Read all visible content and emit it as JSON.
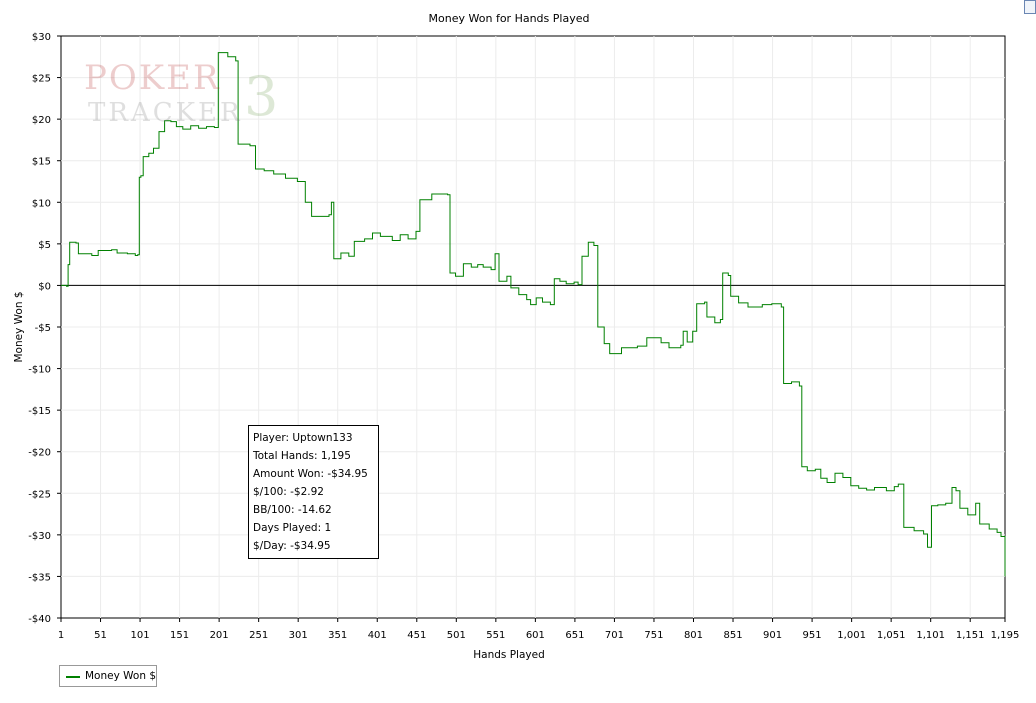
{
  "chart_data": {
    "type": "line",
    "title": "Money Won for Hands Played",
    "xlabel": "Hands Played",
    "ylabel": "Money Won $",
    "xlim": [
      1,
      1195
    ],
    "ylim": [
      -40,
      30
    ],
    "x_ticks": [
      1,
      51,
      101,
      151,
      201,
      251,
      301,
      351,
      401,
      451,
      501,
      551,
      601,
      651,
      701,
      751,
      801,
      851,
      901,
      951,
      1001,
      1051,
      1101,
      1151,
      1195
    ],
    "x_tick_labels": [
      "1",
      "51",
      "101",
      "151",
      "201",
      "251",
      "301",
      "351",
      "401",
      "451",
      "501",
      "551",
      "601",
      "651",
      "701",
      "751",
      "801",
      "851",
      "901",
      "951",
      "1,001",
      "1,051",
      "1,101",
      "1,151",
      "1,195"
    ],
    "y_ticks": [
      30,
      25,
      20,
      15,
      10,
      5,
      0,
      -5,
      -10,
      -15,
      -20,
      -25,
      -30,
      -35,
      -40
    ],
    "y_tick_labels": [
      "$30",
      "$25",
      "$20",
      "$15",
      "$10",
      "$5",
      "$0",
      "-$5",
      "-$10",
      "-$15",
      "-$20",
      "-$25",
      "-$30",
      "-$35",
      "-$40"
    ],
    "grid": true,
    "legend_position": "bottom-left",
    "series": [
      {
        "name": "Money Won $",
        "color": "#008000",
        "points": [
          [
            1,
            0
          ],
          [
            8,
            -0.1
          ],
          [
            10,
            2.5
          ],
          [
            12,
            5.2
          ],
          [
            20,
            5.1
          ],
          [
            23,
            3.8
          ],
          [
            40,
            3.6
          ],
          [
            48,
            4.2
          ],
          [
            65,
            4.3
          ],
          [
            72,
            3.9
          ],
          [
            85,
            3.8
          ],
          [
            95,
            3.6
          ],
          [
            98,
            3.7
          ],
          [
            100,
            13
          ],
          [
            102,
            13.2
          ],
          [
            105,
            15.5
          ],
          [
            112,
            15.9
          ],
          [
            118,
            16.5
          ],
          [
            125,
            18.5
          ],
          [
            132,
            19.8
          ],
          [
            140,
            19.7
          ],
          [
            147,
            19.1
          ],
          [
            155,
            18.8
          ],
          [
            165,
            19.2
          ],
          [
            175,
            18.9
          ],
          [
            185,
            19.1
          ],
          [
            195,
            19
          ],
          [
            200,
            28
          ],
          [
            212,
            27.5
          ],
          [
            222,
            27
          ],
          [
            225,
            17
          ],
          [
            240,
            16.8
          ],
          [
            247,
            14
          ],
          [
            258,
            13.8
          ],
          [
            270,
            13.4
          ],
          [
            285,
            12.9
          ],
          [
            300,
            12.5
          ],
          [
            310,
            10
          ],
          [
            318,
            8.3
          ],
          [
            340,
            8.5
          ],
          [
            343,
            10
          ],
          [
            346,
            3.2
          ],
          [
            355,
            3.9
          ],
          [
            365,
            3.5
          ],
          [
            372,
            5.3
          ],
          [
            385,
            5.6
          ],
          [
            395,
            6.3
          ],
          [
            405,
            5.9
          ],
          [
            420,
            5.4
          ],
          [
            430,
            6.1
          ],
          [
            440,
            5.6
          ],
          [
            450,
            6.5
          ],
          [
            455,
            10.3
          ],
          [
            470,
            11
          ],
          [
            490,
            10.9
          ],
          [
            493,
            1.5
          ],
          [
            500,
            1.1
          ],
          [
            510,
            2.6
          ],
          [
            520,
            2.2
          ],
          [
            528,
            2.5
          ],
          [
            535,
            2.2
          ],
          [
            545,
            1.9
          ],
          [
            550,
            3.8
          ],
          [
            555,
            0.5
          ],
          [
            565,
            1.1
          ],
          [
            570,
            -0.3
          ],
          [
            580,
            -1.1
          ],
          [
            590,
            -1.7
          ],
          [
            595,
            -2.3
          ],
          [
            602,
            -1.5
          ],
          [
            610,
            -2
          ],
          [
            620,
            -2.3
          ],
          [
            625,
            0.8
          ],
          [
            632,
            0.5
          ],
          [
            640,
            0.2
          ],
          [
            650,
            0.4
          ],
          [
            655,
            0.1
          ],
          [
            660,
            3.5
          ],
          [
            668,
            5.2
          ],
          [
            675,
            4.8
          ],
          [
            680,
            -5
          ],
          [
            688,
            -7
          ],
          [
            695,
            -8.2
          ],
          [
            710,
            -7.5
          ],
          [
            730,
            -7.3
          ],
          [
            742,
            -6.3
          ],
          [
            760,
            -6.9
          ],
          [
            770,
            -7.5
          ],
          [
            785,
            -7.2
          ],
          [
            788,
            -5.5
          ],
          [
            793,
            -6.8
          ],
          [
            800,
            -5.5
          ],
          [
            805,
            -2.2
          ],
          [
            815,
            -2
          ],
          [
            818,
            -3.8
          ],
          [
            828,
            -4.5
          ],
          [
            835,
            -4.1
          ],
          [
            838,
            1.5
          ],
          [
            845,
            1.2
          ],
          [
            848,
            -1.3
          ],
          [
            858,
            -2.1
          ],
          [
            870,
            -2.6
          ],
          [
            888,
            -2.3
          ],
          [
            900,
            -2.2
          ],
          [
            912,
            -2.6
          ],
          [
            915,
            -11.8
          ],
          [
            925,
            -11.6
          ],
          [
            935,
            -12.1
          ],
          [
            938,
            -21.8
          ],
          [
            945,
            -22.3
          ],
          [
            955,
            -22.1
          ],
          [
            962,
            -23.2
          ],
          [
            970,
            -23.7
          ],
          [
            980,
            -22.6
          ],
          [
            990,
            -23.1
          ],
          [
            1000,
            -24.1
          ],
          [
            1010,
            -24.4
          ],
          [
            1020,
            -24.6
          ],
          [
            1030,
            -24.3
          ],
          [
            1045,
            -24.7
          ],
          [
            1055,
            -24.2
          ],
          [
            1060,
            -23.9
          ],
          [
            1067,
            -29.1
          ],
          [
            1080,
            -29.5
          ],
          [
            1092,
            -29.9
          ],
          [
            1097,
            -31.5
          ],
          [
            1102,
            -26.5
          ],
          [
            1110,
            -26.4
          ],
          [
            1120,
            -26.2
          ],
          [
            1128,
            -24.3
          ],
          [
            1133,
            -24.7
          ],
          [
            1138,
            -26.8
          ],
          [
            1148,
            -27.6
          ],
          [
            1158,
            -26.2
          ],
          [
            1163,
            -28.7
          ],
          [
            1175,
            -29.3
          ],
          [
            1185,
            -29.7
          ],
          [
            1190,
            -30.2
          ],
          [
            1195,
            -35
          ]
        ]
      }
    ]
  },
  "stats": {
    "player": "Player: Uptown133",
    "total_hands": "Total Hands: 1,195",
    "amount_won": "Amount Won: -$34.95",
    "per100": "$/100: -$2.92",
    "bb100": "BB/100: -14.62",
    "days_played": "Days Played: 1",
    "per_day": "$/Day: -$34.95"
  },
  "legend": {
    "label": "Money Won $"
  },
  "watermark": {
    "line1": "POKER",
    "line2": "TRACKER",
    "badge": "3"
  }
}
